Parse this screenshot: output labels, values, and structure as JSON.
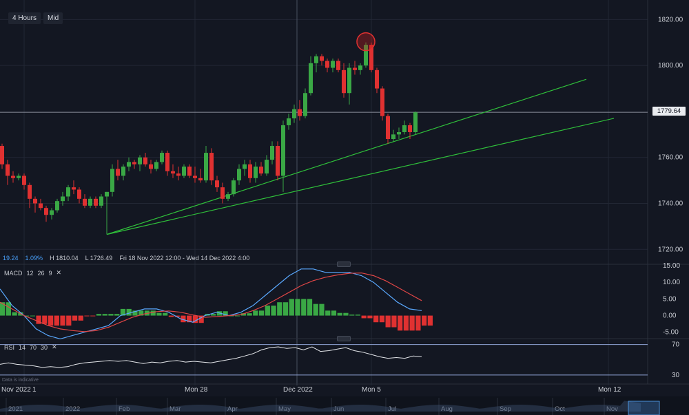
{
  "toolbar": {
    "timeframe": "4 Hours",
    "price_type": "Mid"
  },
  "ohlc": {
    "change": "19.24",
    "change_pct": "1.09%",
    "high": "H 1810.04",
    "low": "L 1726.49",
    "range": "Fri 18 Nov 2022 12:00 - Wed 14 Dec 2022 4:00"
  },
  "last_price": "1779.64",
  "macd": {
    "label": "MACD",
    "fast": "12",
    "slow": "26",
    "signal": "9"
  },
  "rsi": {
    "label": "RSI",
    "period": "14",
    "upper": "70",
    "lower": "30"
  },
  "disclaimer": "Data is indicative",
  "colors": {
    "up": "#3aa845",
    "down": "#e03131",
    "macd_line": "#5aa9ff",
    "signal_line": "#e04646",
    "trend": "#2fbf3a",
    "bg": "#131722"
  },
  "chart_data": {
    "type": "candlestick",
    "y_ticks": [
      "1820.00",
      "1800.00",
      "1779.64",
      "1760.00",
      "1740.00",
      "1720.00"
    ],
    "y_tick_values": [
      1820,
      1800,
      1760,
      1740,
      1720
    ],
    "ylim": [
      1713.5,
      1828.5
    ],
    "x_labels": [
      "Nov 2022",
      "1",
      "Mon 28",
      "Dec 2022",
      "Mon 5",
      "Mon 12"
    ],
    "candles": [
      [
        1765,
        1766,
        1755,
        1757
      ],
      [
        1757,
        1759,
        1748,
        1752
      ],
      [
        1752,
        1754,
        1749,
        1751
      ],
      [
        1751,
        1753,
        1750,
        1752
      ],
      [
        1752,
        1753,
        1746,
        1748
      ],
      [
        1748,
        1749,
        1738,
        1742
      ],
      [
        1742,
        1743,
        1736,
        1740
      ],
      [
        1740,
        1742,
        1737,
        1738
      ],
      [
        1738,
        1739,
        1732,
        1735
      ],
      [
        1735,
        1738,
        1733,
        1737
      ],
      [
        1737,
        1742,
        1736,
        1741
      ],
      [
        1741,
        1745,
        1739,
        1743
      ],
      [
        1743,
        1748,
        1741,
        1747
      ],
      [
        1747,
        1750,
        1744,
        1746
      ],
      [
        1746,
        1747,
        1740,
        1742
      ],
      [
        1742,
        1744,
        1738,
        1739
      ],
      [
        1739,
        1743,
        1738,
        1742
      ],
      [
        1742,
        1743,
        1738,
        1739
      ],
      [
        1739,
        1744,
        1738,
        1743
      ],
      [
        1743,
        1745,
        1726.49,
        1745
      ],
      [
        1745,
        1757,
        1743,
        1755
      ],
      [
        1755,
        1759,
        1750,
        1752
      ],
      [
        1752,
        1757,
        1750,
        1756
      ],
      [
        1756,
        1760,
        1754,
        1758
      ],
      [
        1758,
        1759,
        1755,
        1757
      ],
      [
        1757,
        1761,
        1754,
        1760
      ],
      [
        1760,
        1762,
        1756,
        1757
      ],
      [
        1757,
        1759,
        1753,
        1755
      ],
      [
        1755,
        1759,
        1754,
        1758
      ],
      [
        1758,
        1763,
        1757,
        1762
      ],
      [
        1762,
        1763,
        1752,
        1754
      ],
      [
        1754,
        1757,
        1751,
        1753
      ],
      [
        1753,
        1756,
        1750,
        1752
      ],
      [
        1752,
        1757,
        1751,
        1756
      ],
      [
        1756,
        1757,
        1751,
        1752
      ],
      [
        1752,
        1756,
        1749,
        1751
      ],
      [
        1751,
        1755,
        1749,
        1750
      ],
      [
        1750,
        1765,
        1749,
        1762
      ],
      [
        1762,
        1764,
        1748,
        1750
      ],
      [
        1750,
        1752,
        1745,
        1747
      ],
      [
        1747,
        1749,
        1740,
        1742
      ],
      [
        1742,
        1745,
        1741,
        1744
      ],
      [
        1744,
        1751,
        1743,
        1750
      ],
      [
        1750,
        1757,
        1748,
        1755
      ],
      [
        1755,
        1759,
        1752,
        1757
      ],
      [
        1757,
        1759,
        1749,
        1751
      ],
      [
        1751,
        1758,
        1749,
        1756
      ],
      [
        1756,
        1758,
        1752,
        1753
      ],
      [
        1753,
        1761,
        1752,
        1759
      ],
      [
        1759,
        1767,
        1757,
        1765
      ],
      [
        1765,
        1767,
        1750,
        1752
      ],
      [
        1752,
        1776,
        1745,
        1774
      ],
      [
        1774,
        1779,
        1772,
        1777
      ],
      [
        1777,
        1783,
        1775,
        1781
      ],
      [
        1781,
        1785,
        1776,
        1778
      ],
      [
        1778,
        1790,
        1777,
        1788
      ],
      [
        1788,
        1804,
        1787,
        1801
      ],
      [
        1801,
        1805,
        1797,
        1804
      ],
      [
        1804,
        1805,
        1800,
        1802
      ],
      [
        1802,
        1803,
        1797,
        1799
      ],
      [
        1799,
        1803,
        1797,
        1802
      ],
      [
        1802,
        1803,
        1797,
        1798
      ],
      [
        1798,
        1801,
        1786,
        1788
      ],
      [
        1788,
        1801,
        1783,
        1799
      ],
      [
        1799,
        1802,
        1796,
        1798
      ],
      [
        1798,
        1801,
        1796,
        1800
      ],
      [
        1800,
        1810.04,
        1799,
        1809
      ],
      [
        1809,
        1810,
        1797,
        1798
      ],
      [
        1798,
        1799,
        1788,
        1790
      ],
      [
        1790,
        1791,
        1776,
        1778
      ],
      [
        1778,
        1779,
        1766,
        1768
      ],
      [
        1768,
        1772,
        1767,
        1770
      ],
      [
        1770,
        1773,
        1768,
        1771
      ],
      [
        1771,
        1776,
        1770,
        1774
      ],
      [
        1774,
        1775,
        1768,
        1771
      ],
      [
        1771,
        1780,
        1770,
        1779.64
      ]
    ],
    "macd_line": [
      8,
      3,
      0,
      -4,
      -6,
      -7,
      -6,
      -5,
      -4,
      -3,
      0,
      1,
      2,
      2,
      1,
      -1,
      -2,
      0,
      1,
      0,
      1,
      3,
      6,
      9,
      12,
      14,
      14,
      13,
      13,
      13,
      12,
      10,
      7,
      4,
      2,
      1.5
    ],
    "signal_line": [
      4,
      2,
      0,
      -1.5,
      -3,
      -4,
      -4.5,
      -4.8,
      -4.5,
      -3.5,
      -2,
      -0.5,
      0.5,
      1.2,
      1.4,
      1,
      0.2,
      -0.5,
      -0.3,
      0,
      0.3,
      1.5,
      3,
      5,
      7,
      9,
      10.5,
      11.5,
      12.2,
      12.7,
      12.8,
      12,
      10.5,
      8.5,
      6.5,
      4.5
    ],
    "macd_ylim": [
      -6.5,
      15
    ],
    "macd_ticks": [
      "15.00",
      "10.00",
      "5.00",
      "0.00",
      "-5.00"
    ],
    "rsi_values": [
      44,
      46,
      44,
      43,
      42,
      40,
      41,
      40,
      41,
      44,
      46,
      47,
      48,
      49,
      48,
      49,
      47,
      45,
      47,
      46,
      48,
      49,
      47,
      48,
      47,
      46,
      48,
      50,
      52,
      55,
      58,
      63,
      66,
      67,
      65,
      66,
      63,
      67,
      61,
      62,
      64,
      66,
      62,
      60,
      57,
      54,
      52,
      53,
      52,
      55,
      54
    ],
    "rsi_ylim": [
      20,
      76
    ],
    "trend_lines": [
      {
        "x1": 19.0,
        "y1": 1726.49,
        "x2": 106,
        "y2": 1794
      },
      {
        "x1": 19.0,
        "y1": 1726.49,
        "x2": 111,
        "y2": 1777
      }
    ],
    "highlight_candle": 66,
    "nav_labels": [
      "2021",
      "2022",
      "Feb",
      "Mar",
      "Apr",
      "May",
      "Jun",
      "Jul",
      "Aug",
      "Sep",
      "Oct",
      "Nov"
    ]
  }
}
